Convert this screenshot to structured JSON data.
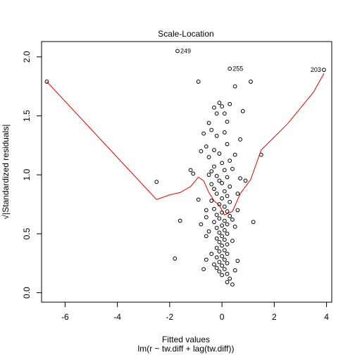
{
  "chart_data": {
    "type": "scatter",
    "title": "Scale-Location",
    "xlabel": "Fitted values",
    "sublabel": "lm(r ~ tw.diff + lag(tw.diff))",
    "ylabel": "√|Standardized residuals|",
    "xlim": [
      -6.9,
      4.2
    ],
    "ylim": [
      -0.08,
      2.13
    ],
    "x_ticks": [
      -6,
      -4,
      -2,
      0,
      2,
      4
    ],
    "y_ticks": [
      0.0,
      0.5,
      1.0,
      1.5,
      2.0
    ],
    "x_tick_labels": [
      "-6",
      "-4",
      "-2",
      "0",
      "2",
      "4"
    ],
    "y_tick_labels": [
      "0.0",
      "0.5",
      "1.0",
      "1.5",
      "2.0"
    ],
    "points": [
      [
        -6.7,
        1.79
      ],
      [
        -2.5,
        0.94
      ],
      [
        -1.8,
        0.29
      ],
      [
        -1.6,
        0.61
      ],
      [
        -1.7,
        2.05
      ],
      [
        -1.2,
        1.04
      ],
      [
        -1.1,
        1.01
      ],
      [
        -0.9,
        1.79
      ],
      [
        -0.9,
        0.79
      ],
      [
        -0.8,
        0.58
      ],
      [
        -0.7,
        0.2
      ],
      [
        -0.6,
        0.7
      ],
      [
        -0.6,
        0.28
      ],
      [
        0.3,
        1.9
      ],
      [
        0.5,
        1.75
      ],
      [
        1.1,
        1.79
      ],
      [
        1.5,
        1.17
      ],
      [
        1.2,
        0.6
      ],
      [
        0.9,
        0.95
      ],
      [
        3.9,
        1.89
      ],
      [
        -0.1,
        1.61
      ],
      [
        0.0,
        1.58
      ],
      [
        0.1,
        1.52
      ],
      [
        -0.3,
        1.57
      ],
      [
        0.2,
        1.45
      ],
      [
        -0.5,
        1.44
      ],
      [
        -0.4,
        1.38
      ],
      [
        0.1,
        1.36
      ],
      [
        -0.2,
        1.33
      ],
      [
        -0.7,
        1.35
      ],
      [
        -0.6,
        1.24
      ],
      [
        -0.3,
        1.21
      ],
      [
        0.2,
        1.26
      ],
      [
        -0.1,
        1.18
      ],
      [
        -0.5,
        1.15
      ],
      [
        0.3,
        1.12
      ],
      [
        0.0,
        1.1
      ],
      [
        -0.3,
        1.07
      ],
      [
        0.1,
        1.04
      ],
      [
        -0.4,
        1.03
      ],
      [
        0.4,
        1.05
      ],
      [
        -0.2,
        0.99
      ],
      [
        0.2,
        0.98
      ],
      [
        -0.1,
        0.95
      ],
      [
        0.0,
        0.93
      ],
      [
        0.3,
        0.9
      ],
      [
        -0.3,
        0.88
      ],
      [
        0.1,
        0.86
      ],
      [
        -0.2,
        0.84
      ],
      [
        0.2,
        0.82
      ],
      [
        0.0,
        0.8
      ],
      [
        -0.4,
        0.78
      ],
      [
        0.3,
        0.77
      ],
      [
        -0.1,
        0.75
      ],
      [
        0.1,
        0.73
      ],
      [
        -0.3,
        0.71
      ],
      [
        0.2,
        0.69
      ],
      [
        0.0,
        0.68
      ],
      [
        -0.2,
        0.66
      ],
      [
        0.3,
        0.65
      ],
      [
        -0.1,
        0.63
      ],
      [
        0.1,
        0.61
      ],
      [
        -0.3,
        0.6
      ],
      [
        0.2,
        0.58
      ],
      [
        0.0,
        0.57
      ],
      [
        -0.2,
        0.55
      ],
      [
        0.1,
        0.53
      ],
      [
        -0.1,
        0.51
      ],
      [
        0.2,
        0.5
      ],
      [
        0.0,
        0.48
      ],
      [
        -0.2,
        0.46
      ],
      [
        0.1,
        0.45
      ],
      [
        -0.1,
        0.43
      ],
      [
        0.2,
        0.41
      ],
      [
        0.0,
        0.4
      ],
      [
        -0.2,
        0.38
      ],
      [
        0.1,
        0.36
      ],
      [
        -0.1,
        0.35
      ],
      [
        0.2,
        0.33
      ],
      [
        0.0,
        0.31
      ],
      [
        -0.2,
        0.3
      ],
      [
        0.1,
        0.28
      ],
      [
        -0.1,
        0.26
      ],
      [
        0.2,
        0.25
      ],
      [
        0.0,
        0.23
      ],
      [
        -0.2,
        0.21
      ],
      [
        0.1,
        0.2
      ],
      [
        -0.1,
        0.18
      ],
      [
        0.2,
        0.16
      ],
      [
        0.0,
        0.15
      ],
      [
        0.3,
        0.12
      ],
      [
        0.2,
        0.09
      ],
      [
        0.4,
        0.07
      ],
      [
        -0.3,
        0.24
      ],
      [
        0.5,
        0.19
      ],
      [
        0.6,
        0.27
      ],
      [
        -0.4,
        0.33
      ],
      [
        0.4,
        0.44
      ],
      [
        -0.5,
        0.52
      ],
      [
        0.5,
        0.56
      ],
      [
        -0.6,
        0.64
      ],
      [
        0.6,
        0.7
      ],
      [
        -0.4,
        0.92
      ],
      [
        0.5,
        1.17
      ],
      [
        0.7,
        1.3
      ],
      [
        -0.2,
        1.52
      ],
      [
        0.3,
        1.6
      ],
      [
        0.8,
        1.54
      ],
      [
        -0.8,
        1.2
      ],
      [
        0.6,
        0.84
      ],
      [
        -0.5,
        1.0
      ],
      [
        0.4,
        0.62
      ],
      [
        -0.6,
        0.48
      ],
      [
        0.7,
        0.97
      ]
    ],
    "labeled_points": [
      {
        "x": -1.7,
        "y": 2.05,
        "label": "249"
      },
      {
        "x": 0.3,
        "y": 1.9,
        "label": "255"
      },
      {
        "x": 3.9,
        "y": 1.89,
        "label": "203"
      }
    ],
    "smooth_line": {
      "color": "#e00000",
      "x": [
        -6.7,
        -2.5,
        -2.0,
        -1.6,
        -1.2,
        -0.9,
        -0.7,
        -0.5,
        -0.3,
        -0.1,
        0.1,
        0.4,
        0.7,
        1.1,
        1.5,
        2.5,
        3.5,
        3.9
      ],
      "y": [
        1.79,
        0.79,
        0.83,
        0.85,
        0.9,
        0.98,
        0.95,
        0.85,
        0.78,
        0.74,
        0.66,
        0.69,
        0.84,
        0.96,
        1.21,
        1.43,
        1.7,
        1.86
      ]
    }
  }
}
